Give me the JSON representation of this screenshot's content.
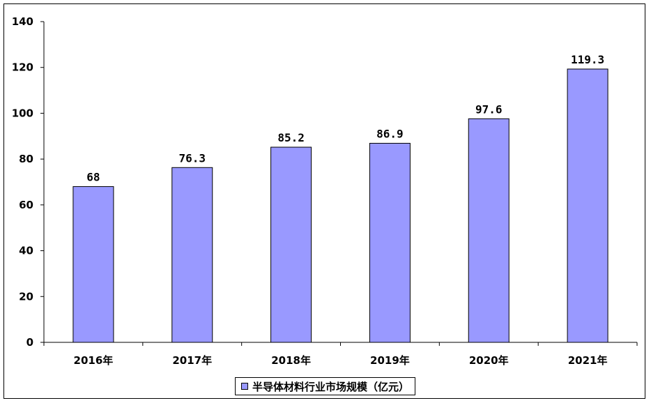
{
  "chart_data": {
    "type": "bar",
    "categories": [
      "2016年",
      "2017年",
      "2018年",
      "2019年",
      "2020年",
      "2021年"
    ],
    "series": [
      {
        "name": "半导体材料行业市场规模（亿元）",
        "values": [
          68,
          76.3,
          85.2,
          86.9,
          97.6,
          119.3
        ],
        "data_labels": [
          "68",
          "76.3",
          "85.2",
          "86.9",
          "97.6",
          "119.3"
        ]
      }
    ],
    "yticks": [
      "0",
      "20",
      "40",
      "60",
      "80",
      "100",
      "120",
      "140"
    ],
    "ylim": [
      0,
      140
    ],
    "grid": false,
    "legend_position": "bottom",
    "colors": {
      "bar": "#9999ff",
      "border": "#000000"
    }
  }
}
